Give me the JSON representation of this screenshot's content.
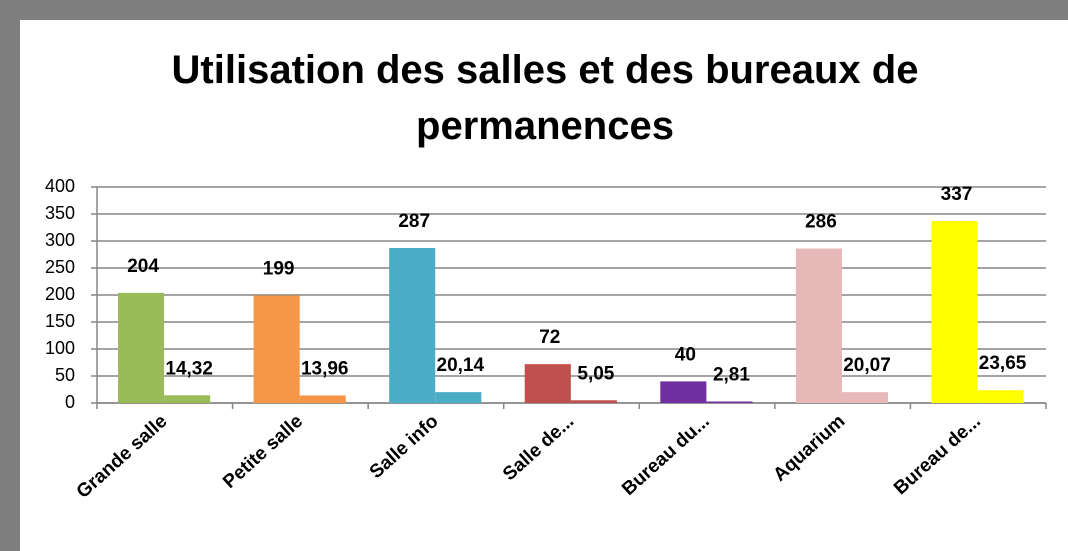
{
  "chart_data": {
    "type": "bar",
    "title": "Utilisation des salles et des bureaux de permanences",
    "categories": [
      "Grande salle",
      "Petite salle",
      "Salle info",
      "Salle de...",
      "Bureau du...",
      "Aquarium",
      "Bureau de..."
    ],
    "series": [
      {
        "colors": [
          "#9bbb59",
          "#f79646",
          "#4bacc6",
          "#c0504d",
          "#7030a0",
          "#e6b9b8",
          "#ffff00"
        ],
        "values": [
          204,
          199,
          287,
          72,
          40,
          286,
          337
        ]
      },
      {
        "colors": [
          "#9bbb59",
          "#f79646",
          "#4bacc6",
          "#c0504d",
          "#7030a0",
          "#e6b9b8",
          "#ffff00"
        ],
        "values": [
          14.32,
          13.96,
          20.14,
          5.05,
          2.81,
          20.07,
          23.65
        ],
        "value_labels": [
          "14,32",
          "13,96",
          "20,14",
          "5,05",
          "2,81",
          "20,07",
          "23,65"
        ]
      }
    ],
    "ylim": [
      0,
      400
    ],
    "yticks": [
      0,
      50,
      100,
      150,
      200,
      250,
      300,
      350,
      400
    ],
    "grid": true
  }
}
